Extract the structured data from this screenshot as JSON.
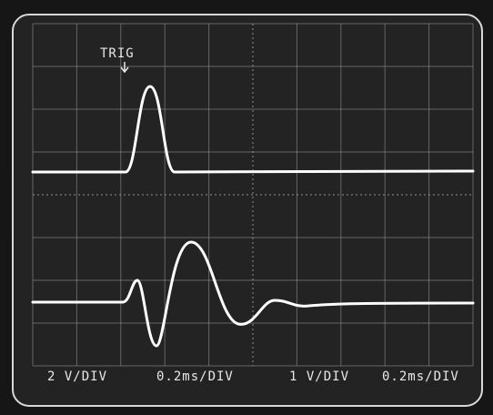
{
  "trigger_label": "TRIG",
  "channels": [
    {
      "volts_per_div": "2 V/DIV",
      "time_per_div": "0.2ms/DIV"
    },
    {
      "volts_per_div": "1 V/DIV",
      "time_per_div": "0.2ms/DIV"
    }
  ]
}
